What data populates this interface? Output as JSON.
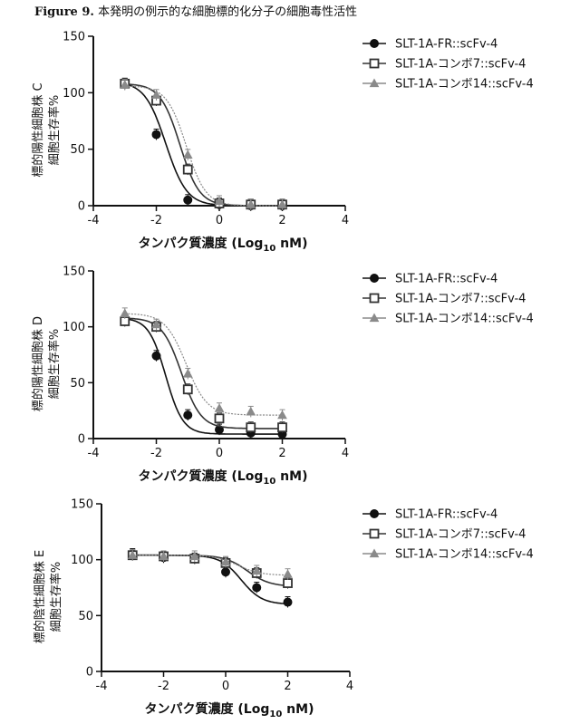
{
  "figure": {
    "label": "Figure 9.",
    "caption": "本発明の例示的な細胞標的化分子の細胞毒性活性"
  },
  "colors": {
    "axis": "#111111",
    "series_1": "#111111",
    "series_2": "#333333",
    "series_3": "#8a8a8a"
  },
  "chart_data": [
    {
      "type": "line",
      "title": "",
      "ylabel_line1": "標的陽性細胞株 C",
      "ylabel_line2": "細胞生存率%",
      "xlabel": "タンパク質濃度 (Log10 nM)",
      "xlim": [
        -4,
        4
      ],
      "ylim": [
        0,
        150
      ],
      "xticks": [
        "-4",
        "-2",
        "0",
        "2",
        "4"
      ],
      "yticks": [
        "0",
        "50",
        "100",
        "150"
      ],
      "legend_position": "top-right",
      "series": [
        {
          "name": "SLT-1A-FR::scFv-4",
          "marker": "circle",
          "x": [
            -3,
            -2,
            -1,
            0,
            1,
            2
          ],
          "y": [
            108,
            63,
            5,
            1,
            0,
            0
          ],
          "curve": {
            "top": 110,
            "bottom": 0,
            "logEC50": -1.7,
            "hill": -1.3
          }
        },
        {
          "name": "SLT-1A-コンボ7::scFv-4",
          "marker": "square",
          "x": [
            -3,
            -2,
            -1,
            0,
            1,
            2
          ],
          "y": [
            108,
            93,
            32,
            2,
            1,
            1
          ],
          "curve": {
            "top": 108,
            "bottom": 0,
            "logEC50": -1.25,
            "hill": -1.4
          }
        },
        {
          "name": "SLT-1A-コンボ14::scFv-4",
          "marker": "triangle",
          "x": [
            -3,
            -2,
            -1,
            0,
            1,
            2
          ],
          "y": [
            107,
            98,
            45,
            4,
            1,
            1
          ],
          "curve": {
            "top": 106,
            "bottom": 0,
            "logEC50": -1.05,
            "hill": -1.4
          }
        }
      ]
    },
    {
      "type": "line",
      "title": "",
      "ylabel_line1": "標的陽性細胞株 D",
      "ylabel_line2": "細胞生存率%",
      "xlabel": "タンパク質濃度 (Log10 nM)",
      "xlim": [
        -4,
        4
      ],
      "ylim": [
        0,
        150
      ],
      "xticks": [
        "-4",
        "-2",
        "0",
        "2",
        "4"
      ],
      "yticks": [
        "0",
        "50",
        "100",
        "150"
      ],
      "legend_position": "top-right",
      "series": [
        {
          "name": "SLT-1A-FR::scFv-4",
          "marker": "circle",
          "x": [
            -3,
            -2,
            -1,
            0,
            1,
            2
          ],
          "y": [
            107,
            74,
            21,
            8,
            5,
            4
          ],
          "curve": {
            "top": 108,
            "bottom": 4,
            "logEC50": -1.7,
            "hill": -1.6
          }
        },
        {
          "name": "SLT-1A-コンボ7::scFv-4",
          "marker": "square",
          "x": [
            -3,
            -2,
            -1,
            0,
            1,
            2
          ],
          "y": [
            105,
            100,
            44,
            18,
            10,
            10
          ],
          "curve": {
            "top": 108,
            "bottom": 9,
            "logEC50": -1.2,
            "hill": -1.4
          }
        },
        {
          "name": "SLT-1A-コンボ14::scFv-4",
          "marker": "triangle",
          "x": [
            -3,
            -2,
            -1,
            0,
            1,
            2
          ],
          "y": [
            112,
            102,
            58,
            27,
            24,
            21
          ],
          "curve": {
            "top": 112,
            "bottom": 21,
            "logEC50": -1.05,
            "hill": -1.3
          }
        }
      ]
    },
    {
      "type": "line",
      "title": "",
      "ylabel_line1": "標的陰性細胞株 E",
      "ylabel_line2": "細胞生存率%",
      "xlabel": "タンパク質濃度 (Log10 nM)",
      "xlim": [
        -4,
        4
      ],
      "ylim": [
        0,
        150
      ],
      "xticks": [
        "-4",
        "-2",
        "0",
        "2",
        "4"
      ],
      "yticks": [
        "0",
        "50",
        "100",
        "150"
      ],
      "legend_position": "top-right",
      "series": [
        {
          "name": "SLT-1A-FR::scFv-4",
          "marker": "circle",
          "x": [
            -3,
            -2,
            -1,
            0,
            1,
            2
          ],
          "y": [
            105,
            102,
            101,
            89,
            75,
            62
          ],
          "curve": {
            "top": 104,
            "bottom": 60,
            "logEC50": 0.5,
            "hill": -1.3
          }
        },
        {
          "name": "SLT-1A-コンボ7::scFv-4",
          "marker": "square",
          "x": [
            -3,
            -2,
            -1,
            0,
            1,
            2
          ],
          "y": [
            104,
            103,
            101,
            97,
            88,
            79
          ],
          "curve": {
            "top": 104,
            "bottom": 76,
            "logEC50": 0.7,
            "hill": -1.2
          }
        },
        {
          "name": "SLT-1A-コンボ14::scFv-4",
          "marker": "triangle",
          "x": [
            -3,
            -2,
            -1,
            0,
            1,
            2
          ],
          "y": [
            104,
            103,
            103,
            98,
            90,
            87
          ],
          "curve": {
            "top": 104,
            "bottom": 86,
            "logEC50": 0.4,
            "hill": -1.2
          }
        }
      ]
    }
  ]
}
